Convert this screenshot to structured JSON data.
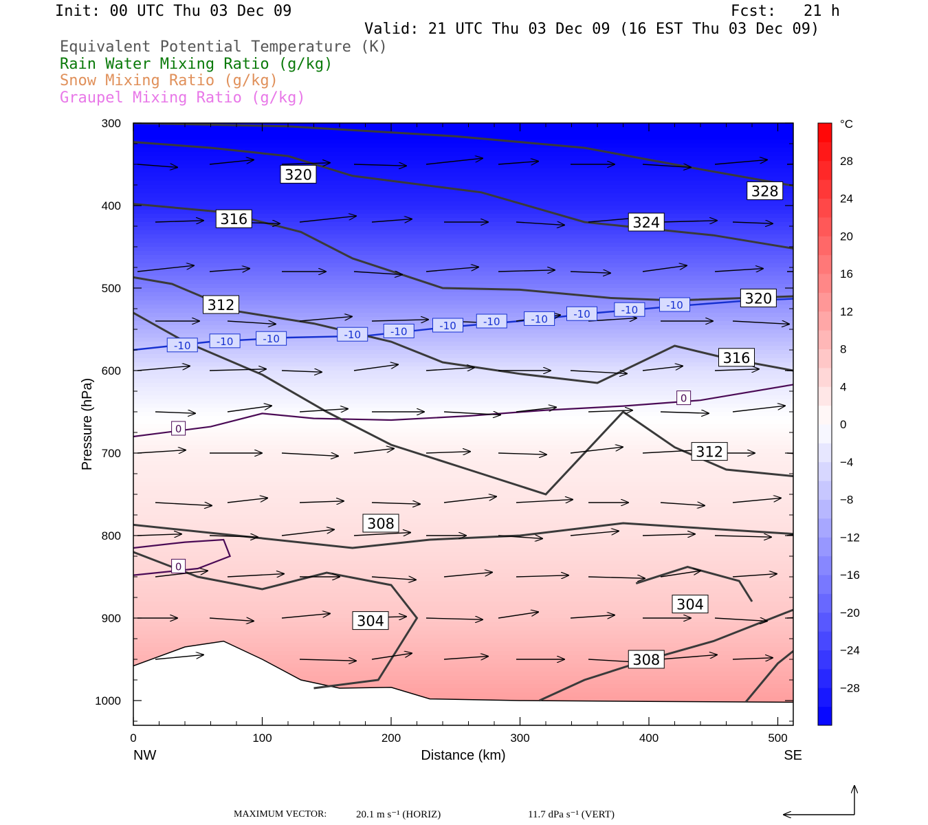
{
  "header": {
    "init": "Init: 00 UTC Thu 03 Dec 09",
    "fcst": "Fcst:   21 h",
    "valid": "Valid: 21 UTC Thu 03 Dec 09 (16 EST Thu 03 Dec 09)",
    "fields": [
      {
        "text": "Equivalent Potential Temperature (K)",
        "color": "#555555"
      },
      {
        "text": "Rain Water Mixing Ratio (g/kg)",
        "color": "#0a7a0a"
      },
      {
        "text": "Snow Mixing Ratio (g/kg)",
        "color": "#e0905a"
      },
      {
        "text": "Graupel Mixing Ratio (g/kg)",
        "color": "#e878e8"
      }
    ]
  },
  "footer": {
    "max_vector_label": "MAXIMUM VECTOR:",
    "horiz": "20.1 m s⁻¹ (HORIZ)",
    "vert": "11.7 dPa s⁻¹ (VERT)"
  },
  "chart_data": {
    "type": "cross-section",
    "xlabel": "Distance (km)",
    "ylabel": "Pressure (hPa)",
    "xlim": [
      0,
      512
    ],
    "ylim": [
      1030,
      300
    ],
    "x_ticks": [
      0,
      100,
      200,
      300,
      400,
      500
    ],
    "y_ticks": [
      300,
      400,
      500,
      600,
      700,
      800,
      900,
      1000
    ],
    "x_end_labels": {
      "left": "NW",
      "right": "SE"
    },
    "colorbar": {
      "unit": "°C",
      "labels": [
        28,
        24,
        20,
        16,
        12,
        8,
        4,
        0,
        -4,
        -8,
        -12,
        -16,
        -20,
        -24,
        -28
      ],
      "range": [
        -32,
        32
      ],
      "cold_color": "#0000ff",
      "neutral_color": "#ffffff",
      "warm_color": "#ff0000"
    },
    "temperature_field_c": {
      "pressures": [
        300,
        400,
        500,
        550,
        600,
        650,
        700,
        800,
        900,
        1000
      ],
      "values": [
        -33,
        -27,
        -16,
        -10,
        -4,
        -0.5,
        2,
        4,
        7,
        12
      ]
    },
    "theta_e_contours": [
      {
        "level": 328,
        "points": [
          [
            0,
            300
          ],
          [
            120,
            304
          ],
          [
            250,
            316
          ],
          [
            350,
            330
          ],
          [
            440,
            356
          ],
          [
            512,
            376
          ]
        ]
      },
      {
        "level": 324,
        "points": [
          [
            0,
            323
          ],
          [
            60,
            330
          ],
          [
            120,
            340
          ],
          [
            170,
            364
          ],
          [
            270,
            384
          ],
          [
            350,
            420
          ],
          [
            450,
            436
          ],
          [
            512,
            452
          ]
        ]
      },
      {
        "level": 320,
        "points": [
          [
            0,
            398
          ],
          [
            70,
            408
          ],
          [
            130,
            432
          ],
          [
            170,
            464
          ],
          [
            240,
            500
          ],
          [
            300,
            502
          ],
          [
            370,
            512
          ],
          [
            420,
            515
          ],
          [
            512,
            510
          ]
        ]
      },
      {
        "level": 316,
        "points": [
          [
            0,
            487
          ],
          [
            30,
            495
          ],
          [
            80,
            528
          ],
          [
            140,
            543
          ],
          [
            200,
            565
          ],
          [
            240,
            590
          ],
          [
            300,
            604
          ],
          [
            360,
            615
          ],
          [
            420,
            570
          ],
          [
            460,
            585
          ],
          [
            512,
            600
          ]
        ]
      },
      {
        "level": 312,
        "points": [
          [
            0,
            530
          ],
          [
            40,
            565
          ],
          [
            100,
            605
          ],
          [
            150,
            650
          ],
          [
            200,
            690
          ],
          [
            260,
            720
          ],
          [
            320,
            750
          ],
          [
            380,
            650
          ],
          [
            420,
            693
          ],
          [
            460,
            720
          ],
          [
            512,
            728
          ]
        ]
      },
      {
        "level": 308,
        "points": [
          [
            0,
            787
          ],
          [
            80,
            800
          ],
          [
            170,
            815
          ],
          [
            230,
            805
          ],
          [
            300,
            800
          ],
          [
            380,
            785
          ],
          [
            430,
            790
          ],
          [
            512,
            798
          ]
        ]
      },
      {
        "level": 304,
        "points": [
          [
            0,
            820
          ],
          [
            50,
            850
          ],
          [
            100,
            865
          ],
          [
            150,
            845
          ],
          [
            200,
            860
          ],
          [
            220,
            900
          ],
          [
            190,
            975
          ],
          [
            140,
            985
          ]
        ]
      },
      {
        "level": 304,
        "points": [
          [
            390,
            858
          ],
          [
            430,
            838
          ],
          [
            470,
            855
          ],
          [
            480,
            880
          ]
        ]
      },
      {
        "level": 308,
        "points": [
          [
            315,
            1000
          ],
          [
            350,
            975
          ],
          [
            400,
            950
          ],
          [
            450,
            928
          ],
          [
            512,
            890
          ]
        ]
      },
      {
        "level": 308,
        "points": [
          [
            475,
            1002
          ],
          [
            500,
            955
          ],
          [
            512,
            940
          ]
        ]
      }
    ],
    "theta_e_label_positions": [
      {
        "level": 320,
        "x": 128,
        "p": 362
      },
      {
        "level": 316,
        "x": 78,
        "p": 416
      },
      {
        "level": 324,
        "x": 398,
        "p": 420
      },
      {
        "level": 328,
        "x": 490,
        "p": 382
      },
      {
        "level": 312,
        "x": 68,
        "p": 520
      },
      {
        "level": 320,
        "x": 485,
        "p": 512
      },
      {
        "level": 316,
        "x": 468,
        "p": 584
      },
      {
        "level": 312,
        "x": 447,
        "p": 698
      },
      {
        "level": 308,
        "x": 192,
        "p": 785
      },
      {
        "level": 304,
        "x": 184,
        "p": 903
      },
      {
        "level": 304,
        "x": 432,
        "p": 883
      },
      {
        "level": 308,
        "x": 398,
        "p": 950
      }
    ],
    "temp_contour_minus10": {
      "level": -10,
      "points": [
        [
          0,
          575
        ],
        [
          60,
          565
        ],
        [
          120,
          560
        ],
        [
          180,
          558
        ],
        [
          240,
          548
        ],
        [
          300,
          540
        ],
        [
          360,
          530
        ],
        [
          420,
          522
        ],
        [
          470,
          516
        ],
        [
          512,
          513
        ]
      ]
    },
    "temp_contour_minus10_labels": [
      [
        38,
        569
      ],
      [
        71,
        564
      ],
      [
        107,
        561
      ],
      [
        170,
        556
      ],
      [
        206,
        552
      ],
      [
        244,
        545
      ],
      [
        278,
        540
      ],
      [
        315,
        537
      ],
      [
        348,
        531
      ],
      [
        385,
        526
      ],
      [
        420,
        520
      ]
    ],
    "temp_contour_zero": [
      {
        "level": 0,
        "points": [
          [
            0,
            680
          ],
          [
            60,
            668
          ],
          [
            100,
            652
          ],
          [
            140,
            658
          ],
          [
            200,
            660
          ],
          [
            260,
            655
          ],
          [
            320,
            648
          ],
          [
            380,
            643
          ],
          [
            440,
            636
          ],
          [
            512,
            617
          ]
        ]
      },
      {
        "level": 0,
        "points": [
          [
            0,
            815
          ],
          [
            40,
            808
          ],
          [
            70,
            805
          ],
          [
            75,
            825
          ],
          [
            50,
            840
          ],
          [
            0,
            848
          ]
        ]
      }
    ],
    "temp_contour_zero_labels": [
      [
        35,
        670
      ],
      [
        35,
        837
      ],
      [
        427,
        633
      ]
    ],
    "surface_pressure": [
      [
        0,
        958
      ],
      [
        40,
        935
      ],
      [
        70,
        928
      ],
      [
        100,
        950
      ],
      [
        130,
        975
      ],
      [
        160,
        985
      ],
      [
        200,
        984
      ],
      [
        230,
        998
      ],
      [
        300,
        1000
      ],
      [
        400,
        1001
      ],
      [
        512,
        1002
      ]
    ],
    "wind_vectors": {
      "x": [
        0,
        56,
        112,
        168,
        224,
        280,
        336,
        392,
        448,
        504
      ],
      "pressures": [
        350,
        420,
        480,
        540,
        600,
        650,
        700,
        760,
        800,
        850,
        900,
        950,
        1000
      ]
    },
    "reference_vector": {
      "horiz": "20.1",
      "vert": "11.7"
    }
  }
}
